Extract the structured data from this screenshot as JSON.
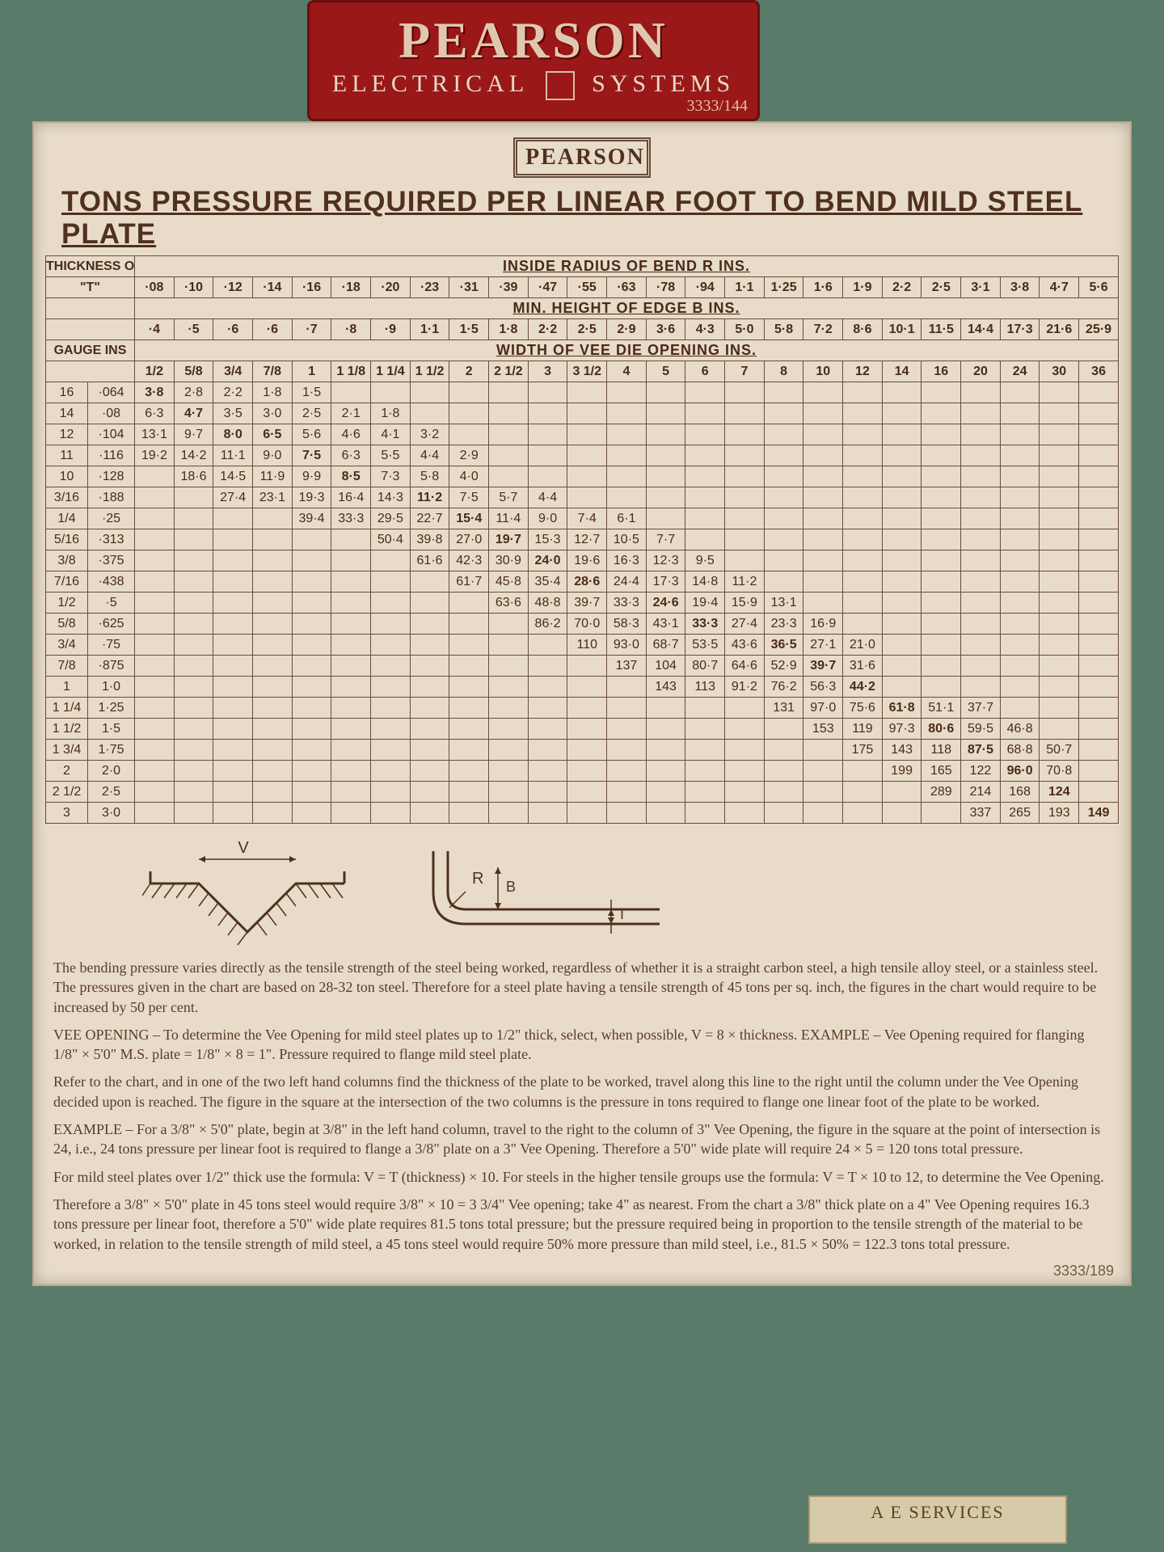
{
  "nameplate": {
    "brand": "PEARSON",
    "line1": "ELECTRICAL",
    "line2": "SYSTEMS",
    "serial": "3333/144"
  },
  "placard": {
    "brand": "PEARSON",
    "title": "TONS PRESSURE REQUIRED PER LINEAR FOOT TO BEND MILD STEEL PLATE",
    "serial": "3333/189",
    "header_labels": {
      "thickness": "THICKNESS OF METAL",
      "t_symbol": "\"T\"",
      "gauge_ins": "GAUGE INS",
      "radius": "INSIDE RADIUS OF BEND  R  INS.",
      "edge": "MIN. HEIGHT OF EDGE  B  INS.",
      "vee": "WIDTH OF VEE DIE OPENING  INS."
    },
    "col_radius": [
      "·08",
      "·10",
      "·12",
      "·14",
      "·16",
      "·18",
      "·20",
      "·23",
      "·31",
      "·39",
      "·47",
      "·55",
      "·63",
      "·78",
      "·94",
      "1·1",
      "1·25",
      "1·6",
      "1·9",
      "2·2",
      "2·5",
      "3·1",
      "3·8",
      "4·7",
      "5·6"
    ],
    "col_edge": [
      "·4",
      "·5",
      "·6",
      "·6",
      "·7",
      "·8",
      "·9",
      "1·1",
      "1·5",
      "1·8",
      "2·2",
      "2·5",
      "2·9",
      "3·6",
      "4·3",
      "5·0",
      "5·8",
      "7·2",
      "8·6",
      "10·1",
      "11·5",
      "14·4",
      "17·3",
      "21·6",
      "25·9"
    ],
    "col_vee": [
      "1/2",
      "5/8",
      "3/4",
      "7/8",
      "1",
      "1 1/8",
      "1 1/4",
      "1 1/2",
      "2",
      "2 1/2",
      "3",
      "3 1/2",
      "4",
      "5",
      "6",
      "7",
      "8",
      "10",
      "12",
      "14",
      "16",
      "20",
      "24",
      "30",
      "36"
    ],
    "rows": [
      {
        "g": "16",
        "t": "·064",
        "v": [
          "3·8",
          "2·8",
          "2·2",
          "1·8",
          "1·5",
          "",
          "",
          "",
          "",
          "",
          "",
          "",
          "",
          "",
          "",
          "",
          "",
          "",
          "",
          "",
          "",
          "",
          "",
          "",
          ""
        ]
      },
      {
        "g": "14",
        "t": "·08",
        "v": [
          "6·3",
          "4·7",
          "3·5",
          "3·0",
          "2·5",
          "2·1",
          "1·8",
          "",
          "",
          "",
          "",
          "",
          "",
          "",
          "",
          "",
          "",
          "",
          "",
          "",
          "",
          "",
          "",
          "",
          ""
        ]
      },
      {
        "g": "12",
        "t": "·104",
        "v": [
          "13·1",
          "9·7",
          "8·0",
          "6·5",
          "5·6",
          "4·6",
          "4·1",
          "3·2",
          "",
          "",
          "",
          "",
          "",
          "",
          "",
          "",
          "",
          "",
          "",
          "",
          "",
          "",
          "",
          "",
          ""
        ]
      },
      {
        "g": "11",
        "t": "·116",
        "v": [
          "19·2",
          "14·2",
          "11·1",
          "9·0",
          "7·5",
          "6·3",
          "5·5",
          "4·4",
          "2·9",
          "",
          "",
          "",
          "",
          "",
          "",
          "",
          "",
          "",
          "",
          "",
          "",
          "",
          "",
          "",
          ""
        ]
      },
      {
        "g": "10",
        "t": "·128",
        "v": [
          "",
          "18·6",
          "14·5",
          "11·9",
          "9·9",
          "8·5",
          "7·3",
          "5·8",
          "4·0",
          "",
          "",
          "",
          "",
          "",
          "",
          "",
          "",
          "",
          "",
          "",
          "",
          "",
          "",
          "",
          ""
        ]
      },
      {
        "g": "3/16",
        "t": "·188",
        "v": [
          "",
          "",
          "27·4",
          "23·1",
          "19·3",
          "16·4",
          "14·3",
          "11·2",
          "7·5",
          "5·7",
          "4·4",
          "",
          "",
          "",
          "",
          "",
          "",
          "",
          "",
          "",
          "",
          "",
          "",
          "",
          ""
        ]
      },
      {
        "g": "1/4",
        "t": "·25",
        "v": [
          "",
          "",
          "",
          "",
          "39·4",
          "33·3",
          "29·5",
          "22·7",
          "15·4",
          "11·4",
          "9·0",
          "7·4",
          "6·1",
          "",
          "",
          "",
          "",
          "",
          "",
          "",
          "",
          "",
          "",
          "",
          ""
        ]
      },
      {
        "g": "5/16",
        "t": "·313",
        "v": [
          "",
          "",
          "",
          "",
          "",
          "",
          "50·4",
          "39·8",
          "27·0",
          "19·7",
          "15·3",
          "12·7",
          "10·5",
          "7·7",
          "",
          "",
          "",
          "",
          "",
          "",
          "",
          "",
          "",
          "",
          ""
        ]
      },
      {
        "g": "3/8",
        "t": "·375",
        "v": [
          "",
          "",
          "",
          "",
          "",
          "",
          "",
          "61·6",
          "42·3",
          "30·9",
          "24·0",
          "19·6",
          "16·3",
          "12·3",
          "9·5",
          "",
          "",
          "",
          "",
          "",
          "",
          "",
          "",
          "",
          ""
        ]
      },
      {
        "g": "7/16",
        "t": "·438",
        "v": [
          "",
          "",
          "",
          "",
          "",
          "",
          "",
          "",
          "61·7",
          "45·8",
          "35·4",
          "28·6",
          "24·4",
          "17·3",
          "14·8",
          "11·2",
          "",
          "",
          "",
          "",
          "",
          "",
          "",
          "",
          ""
        ]
      },
      {
        "g": "1/2",
        "t": "·5",
        "v": [
          "",
          "",
          "",
          "",
          "",
          "",
          "",
          "",
          "",
          "63·6",
          "48·8",
          "39·7",
          "33·3",
          "24·6",
          "19·4",
          "15·9",
          "13·1",
          "",
          "",
          "",
          "",
          "",
          "",
          "",
          ""
        ]
      },
      {
        "g": "5/8",
        "t": "·625",
        "v": [
          "",
          "",
          "",
          "",
          "",
          "",
          "",
          "",
          "",
          "",
          "86·2",
          "70·0",
          "58·3",
          "43·1",
          "33·3",
          "27·4",
          "23·3",
          "16·9",
          "",
          "",
          "",
          "",
          "",
          "",
          ""
        ]
      },
      {
        "g": "3/4",
        "t": "·75",
        "v": [
          "",
          "",
          "",
          "",
          "",
          "",
          "",
          "",
          "",
          "",
          "",
          "110",
          "93·0",
          "68·7",
          "53·5",
          "43·6",
          "36·5",
          "27·1",
          "21·0",
          "",
          "",
          "",
          "",
          "",
          ""
        ]
      },
      {
        "g": "7/8",
        "t": "·875",
        "v": [
          "",
          "",
          "",
          "",
          "",
          "",
          "",
          "",
          "",
          "",
          "",
          "",
          "137",
          "104",
          "80·7",
          "64·6",
          "52·9",
          "39·7",
          "31·6",
          "",
          "",
          "",
          "",
          "",
          ""
        ]
      },
      {
        "g": "1",
        "t": "1·0",
        "v": [
          "",
          "",
          "",
          "",
          "",
          "",
          "",
          "",
          "",
          "",
          "",
          "",
          "",
          "143",
          "113",
          "91·2",
          "76·2",
          "56·3",
          "44·2",
          "",
          "",
          "",
          "",
          "",
          ""
        ]
      },
      {
        "g": "1 1/4",
        "t": "1·25",
        "v": [
          "",
          "",
          "",
          "",
          "",
          "",
          "",
          "",
          "",
          "",
          "",
          "",
          "",
          "",
          "",
          "",
          "131",
          "97·0",
          "75·6",
          "61·8",
          "51·1",
          "37·7",
          "",
          "",
          ""
        ]
      },
      {
        "g": "1 1/2",
        "t": "1·5",
        "v": [
          "",
          "",
          "",
          "",
          "",
          "",
          "",
          "",
          "",
          "",
          "",
          "",
          "",
          "",
          "",
          "",
          "",
          "153",
          "119",
          "97·3",
          "80·6",
          "59·5",
          "46·8",
          "",
          ""
        ]
      },
      {
        "g": "1 3/4",
        "t": "1·75",
        "v": [
          "",
          "",
          "",
          "",
          "",
          "",
          "",
          "",
          "",
          "",
          "",
          "",
          "",
          "",
          "",
          "",
          "",
          "",
          "175",
          "143",
          "118",
          "87·5",
          "68·8",
          "50·7",
          ""
        ]
      },
      {
        "g": "2",
        "t": "2·0",
        "v": [
          "",
          "",
          "",
          "",
          "",
          "",
          "",
          "",
          "",
          "",
          "",
          "",
          "",
          "",
          "",
          "",
          "",
          "",
          "",
          "199",
          "165",
          "122",
          "96·0",
          "70·8",
          ""
        ]
      },
      {
        "g": "2 1/2",
        "t": "2·5",
        "v": [
          "",
          "",
          "",
          "",
          "",
          "",
          "",
          "",
          "",
          "",
          "",
          "",
          "",
          "",
          "",
          "",
          "",
          "",
          "",
          "",
          "289",
          "214",
          "168",
          "124",
          ""
        ]
      },
      {
        "g": "3",
        "t": "3·0",
        "v": [
          "",
          "",
          "",
          "",
          "",
          "",
          "",
          "",
          "",
          "",
          "",
          "",
          "",
          "",
          "",
          "",
          "",
          "",
          "",
          "",
          "",
          "337",
          "265",
          "193",
          "149"
        ]
      }
    ],
    "highlights": {
      "0": [
        0
      ],
      "1": [
        1
      ],
      "2": [
        2,
        3
      ],
      "3": [
        4
      ],
      "4": [
        5
      ],
      "5": [
        7
      ],
      "6": [
        8
      ],
      "7": [
        9
      ],
      "8": [
        10
      ],
      "9": [
        11
      ],
      "10": [
        13
      ],
      "11": [
        14
      ],
      "12": [
        16
      ],
      "13": [
        17
      ],
      "14": [
        18
      ],
      "15": [
        19
      ],
      "16": [
        20
      ],
      "17": [
        21
      ],
      "18": [
        22
      ],
      "19": [
        23
      ],
      "20": [
        24
      ]
    },
    "diagrams": {
      "V_label": "V",
      "R_label": "R",
      "B_label": "B",
      "T_label": "T"
    },
    "notes": [
      "The bending pressure varies directly as the tensile strength of the steel being worked, regardless of whether it is a straight carbon steel, a high tensile alloy steel, or a stainless steel. The pressures given in the chart are based on 28-32 ton steel. Therefore for a steel plate having a tensile strength of 45 tons per sq. inch, the figures in the chart would require to be increased by 50 per cent.",
      "VEE OPENING – To determine the Vee Opening for mild steel plates up to 1/2\" thick, select, when possible, V = 8 × thickness. EXAMPLE – Vee Opening required for flanging 1/8\" × 5'0\" M.S. plate = 1/8\" × 8 = 1\". Pressure required to flange mild steel plate.",
      "Refer to the chart, and in one of the two left hand columns find the thickness of the plate to be worked, travel along this line to the right until the column under the Vee Opening decided upon is reached. The figure in the square at the intersection of the two columns is the pressure in tons required to flange one linear foot of the plate to be worked.",
      "EXAMPLE – For a 3/8\" × 5'0\" plate, begin at 3/8\" in the left hand column, travel to the right to the column of 3\" Vee Opening, the figure in the square at the point of intersection is 24, i.e., 24 tons pressure per linear foot is required to flange a 3/8\" plate on a 3\" Vee Opening. Therefore a 5'0\" wide plate will require 24 × 5 = 120 tons total pressure.",
      "For mild steel plates over 1/2\" thick use the formula: V = T (thickness) × 10. For steels in the higher tensile groups use the formula: V = T × 10 to 12, to determine the Vee Opening.",
      "Therefore a 3/8\" × 5'0\" plate in 45 tons steel would require 3/8\" × 10 = 3 3/4\" Vee opening; take 4\" as nearest. From the chart a 3/8\" thick plate on a 4\" Vee Opening requires 16.3 tons pressure per linear foot, therefore a 5'0\" wide plate requires 81.5 tons total pressure; but the pressure required being in proportion to the tensile strength of the material to be worked, in relation to the tensile strength of mild steel, a 45 tons steel would require 50% more pressure than mild steel, i.e., 81.5 × 50% = 122.3 tons total pressure."
    ]
  },
  "service_plate": {
    "name": "A  E  SERVICES"
  },
  "colors": {
    "bg": "#5a7a6a",
    "placard_bg": "#e8dcc8",
    "text": "#503020",
    "highlight": "#b84818",
    "nameplate_bg": "#9a1818"
  }
}
